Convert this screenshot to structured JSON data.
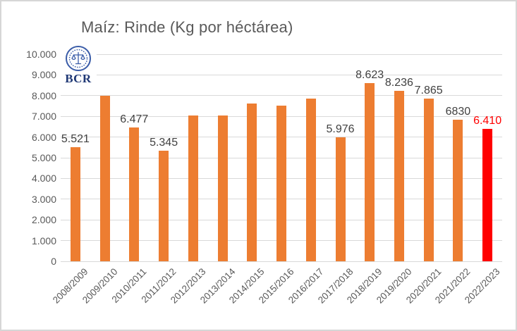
{
  "logo": {
    "text": "BCR"
  },
  "colors": {
    "bar": "#ED7D31",
    "highlight_bar": "#FF0000",
    "data_label": "#404040",
    "highlight_label": "#FF0000",
    "axis_text": "#595959",
    "gridline": "#D9D9D9",
    "title": "#595959",
    "logo_blue": "#3A5CA8",
    "logo_text_blue": "#1F3875"
  },
  "chart_data": {
    "type": "bar",
    "title": "Maíz: Rinde (Kg por héctárea)",
    "categories": [
      "2008/2009",
      "2009/2010",
      "2010/2011",
      "2011/2012",
      "2012/2013",
      "2013/2014",
      "2014/2015",
      "2015/2016",
      "2016/2017",
      "2017/2018",
      "2018/2019",
      "2019/2020",
      "2020/2021",
      "2021/2022",
      "2022/2023"
    ],
    "values": [
      5521,
      8000,
      6477,
      5345,
      7050,
      7050,
      7620,
      7520,
      7850,
      5976,
      8623,
      8236,
      7865,
      6830,
      6410
    ],
    "bar_labels": [
      "5.521",
      "",
      "6.477",
      "5.345",
      "",
      "",
      "",
      "",
      "",
      "5.976",
      "8.623",
      "8.236",
      "7.865",
      "6830",
      "6.410"
    ],
    "highlight_index": 14,
    "xlabel": "",
    "ylabel": "",
    "ylim": [
      0,
      10000
    ],
    "ytick_step": 1000,
    "ytick_labels": [
      "0",
      "1.000",
      "2.000",
      "3.000",
      "4.000",
      "5.000",
      "6.000",
      "7.000",
      "8.000",
      "9.000",
      "10.000"
    ],
    "grid": true,
    "legend_position": "none",
    "x_tick_rotation": 45
  }
}
